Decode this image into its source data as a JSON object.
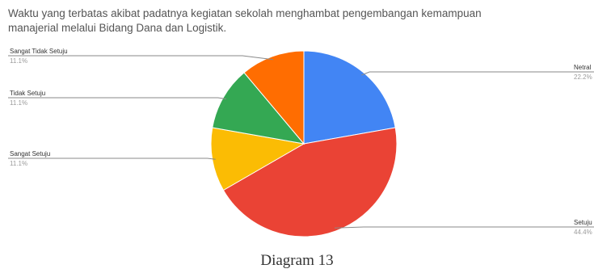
{
  "chart_data": {
    "type": "pie",
    "title_lines": [
      "Waktu yang terbatas akibat padatnya kegiatan sekolah menghambat pengembangan kemampuan",
      "manajerial melalui Bidang Dana dan Logistik."
    ],
    "slices": [
      {
        "label": "Netral",
        "value": 22.2,
        "value_label": "22.2%",
        "color": "#4285f4"
      },
      {
        "label": "Setuju",
        "value": 44.4,
        "value_label": "44.4%",
        "color": "#ea4335"
      },
      {
        "label": "Sangat Setuju",
        "value": 11.1,
        "value_label": "11.1%",
        "color": "#fbbc04"
      },
      {
        "label": "Tidak Setuju",
        "value": 11.1,
        "value_label": "11.1%",
        "color": "#34a853"
      },
      {
        "label": "Sangat Tidak Setuju",
        "value": 11.1,
        "value_label": "11.1%",
        "color": "#ff6d01"
      }
    ],
    "start": "top",
    "direction": "clockwise",
    "legend": "callout labels beside slices"
  },
  "caption": "Diagram 13"
}
